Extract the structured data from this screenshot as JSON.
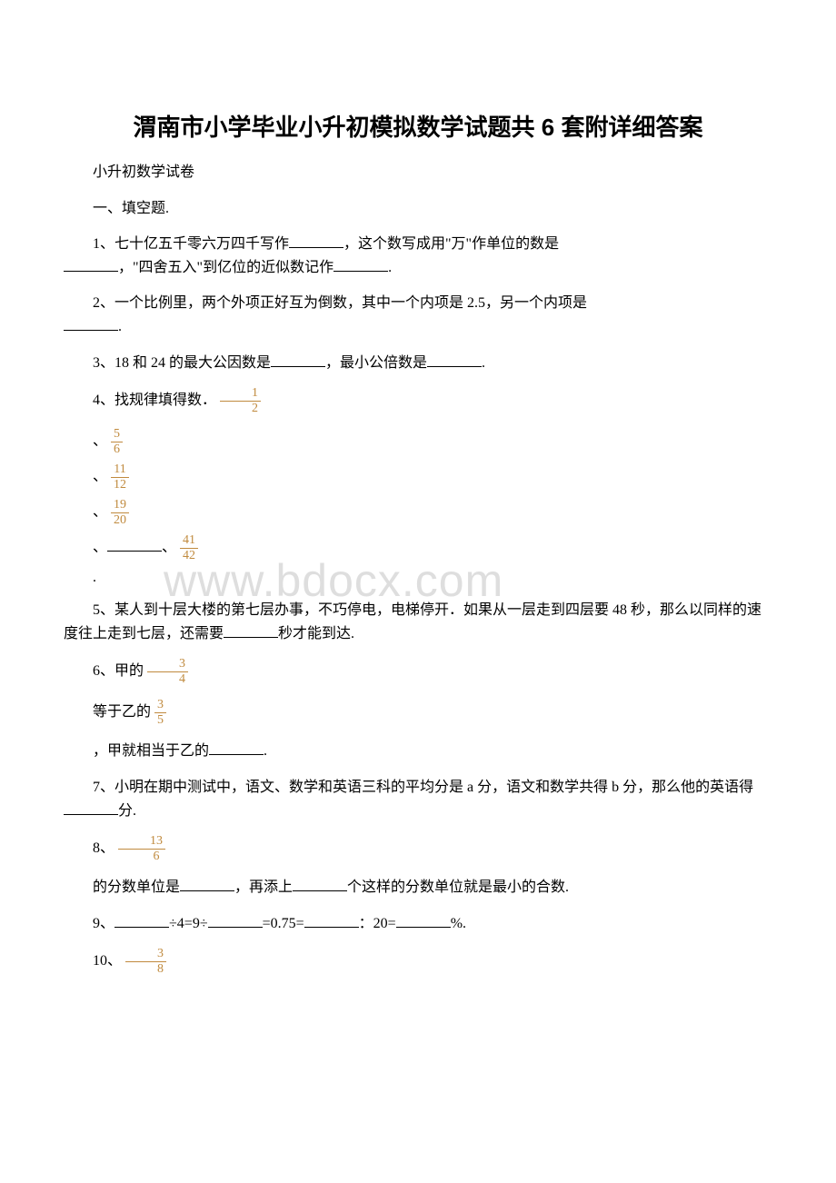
{
  "title": "渭南市小学毕业小升初模拟数学试题共 6 套附详细答案",
  "subtitle": "小升初数学试卷",
  "section1": "一、填空题.",
  "q1_a": "1、七十亿五千零六万四千写作",
  "q1_b": "，这个数写成用\"万\"作单位的数是",
  "q1_c": "，\"四舍五入\"到亿位的近似数记作",
  "q1_d": ".",
  "q2_a": "2、一个比例里，两个外项正好互为倒数，其中一个内项是 2.5，另一个内项是",
  "q2_b": ".",
  "q3_a": "3、18 和 24 的最大公因数是",
  "q3_b": "，最小公倍数是",
  "q3_c": ".",
  "q4_a": "4、找规律填得数．",
  "frac_1_2_n": "1",
  "frac_1_2_d": "2",
  "frac_5_6_n": "5",
  "frac_5_6_d": "6",
  "frac_11_12_n": "11",
  "frac_11_12_d": "12",
  "frac_19_20_n": "19",
  "frac_19_20_d": "20",
  "frac_41_42_n": "41",
  "frac_41_42_d": "42",
  "comma": "、",
  "period": ".",
  "q5_a": "5、某人到十层大楼的第七层办事，不巧停电，电梯停开．如果从一层走到四层要 48 秒，那么以同样的速度往上走到七层，还需要",
  "q5_b": "秒才能到达.",
  "q6_a": "6、甲的",
  "frac_3_4_n": "3",
  "frac_3_4_d": "4",
  "q6_b": "等于乙的",
  "frac_3_5_n": "3",
  "frac_3_5_d": "5",
  "q6_c": "，甲就相当于乙的",
  "q6_d": ".",
  "q7_a": "7、小明在期中测试中，语文、数学和英语三科的平均分是 a 分，语文和数学共得 b 分，那么他的英语得",
  "q7_b": "分.",
  "q8_a": "8、",
  "frac_13_6_n": "13",
  "frac_13_6_d": "6",
  "q8_b": "的分数单位是",
  "q8_c": "，再添上",
  "q8_d": "个这样的分数单位就是最小的合数.",
  "q9_a": "9、",
  "q9_b": "÷4=9÷",
  "q9_c": "=0.75=",
  "q9_d": "：20=",
  "q9_e": "%.",
  "q10_a": "10、",
  "frac_3_8_n": "3",
  "frac_3_8_d": "8",
  "watermark": "www.bdocx.com"
}
